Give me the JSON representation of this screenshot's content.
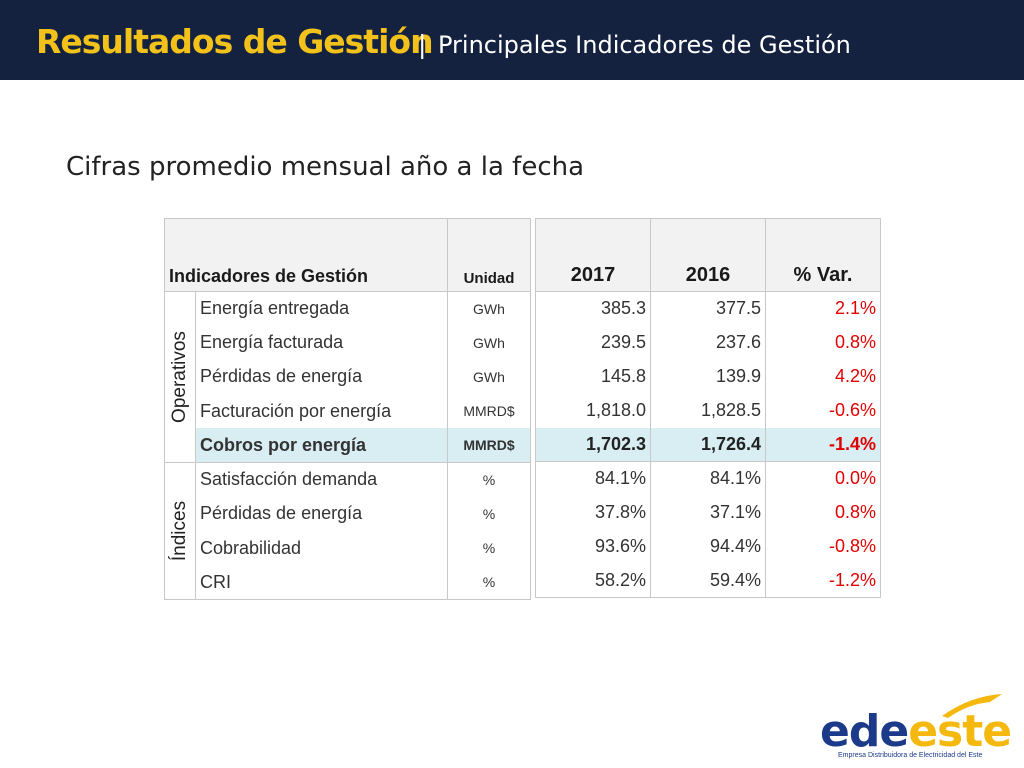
{
  "header": {
    "title_main": "Resultados de Gestión",
    "separator": "|",
    "title_sub": "Principales Indicadores de Gestión",
    "bg_color": "#14223f",
    "accent_color": "#f2c21b"
  },
  "subtitle": "Cifras promedio mensual año a la fecha",
  "table": {
    "headers": {
      "indicator": "Indicadores de Gestión",
      "unit": "Unidad",
      "y2017": "2017",
      "y2016": "2016",
      "var": "% Var."
    },
    "groups": [
      {
        "label": "Operativos",
        "rows": [
          {
            "name": "Energía entregada",
            "unit": "GWh",
            "y2017": "385.3",
            "y2016": "377.5",
            "var": "2.1%"
          },
          {
            "name": "Energía facturada",
            "unit": "GWh",
            "y2017": "239.5",
            "y2016": "237.6",
            "var": "0.8%"
          },
          {
            "name": "Pérdidas de energía",
            "unit": "GWh",
            "y2017": "145.8",
            "y2016": "139.9",
            "var": "4.2%"
          },
          {
            "name": "Facturación por energía",
            "unit": "MMRD$",
            "y2017": "1,818.0",
            "y2016": "1,828.5",
            "var": "-0.6%"
          },
          {
            "name": "Cobros por energía",
            "unit": "MMRD$",
            "y2017": "1,702.3",
            "y2016": "1,726.4",
            "var": "-1.4%"
          }
        ]
      },
      {
        "label": "Índices",
        "rows": [
          {
            "name": "Satisfacción demanda",
            "unit": "%",
            "y2017": "84.1%",
            "y2016": "84.1%",
            "var": "0.0%"
          },
          {
            "name": "Pérdidas de energía",
            "unit": "%",
            "y2017": "37.8%",
            "y2016": "37.1%",
            "var": "0.8%"
          },
          {
            "name": "Cobrabilidad",
            "unit": "%",
            "y2017": "93.6%",
            "y2016": "94.4%",
            "var": "-0.8%"
          },
          {
            "name": "CRI",
            "unit": "%",
            "y2017": "58.2%",
            "y2016": "59.4%",
            "var": "-1.2%"
          }
        ]
      }
    ]
  },
  "logo": {
    "word_a": "ede",
    "word_b": "este",
    "tagline": "Empresa Distribuidora de Electricidad del Este"
  }
}
